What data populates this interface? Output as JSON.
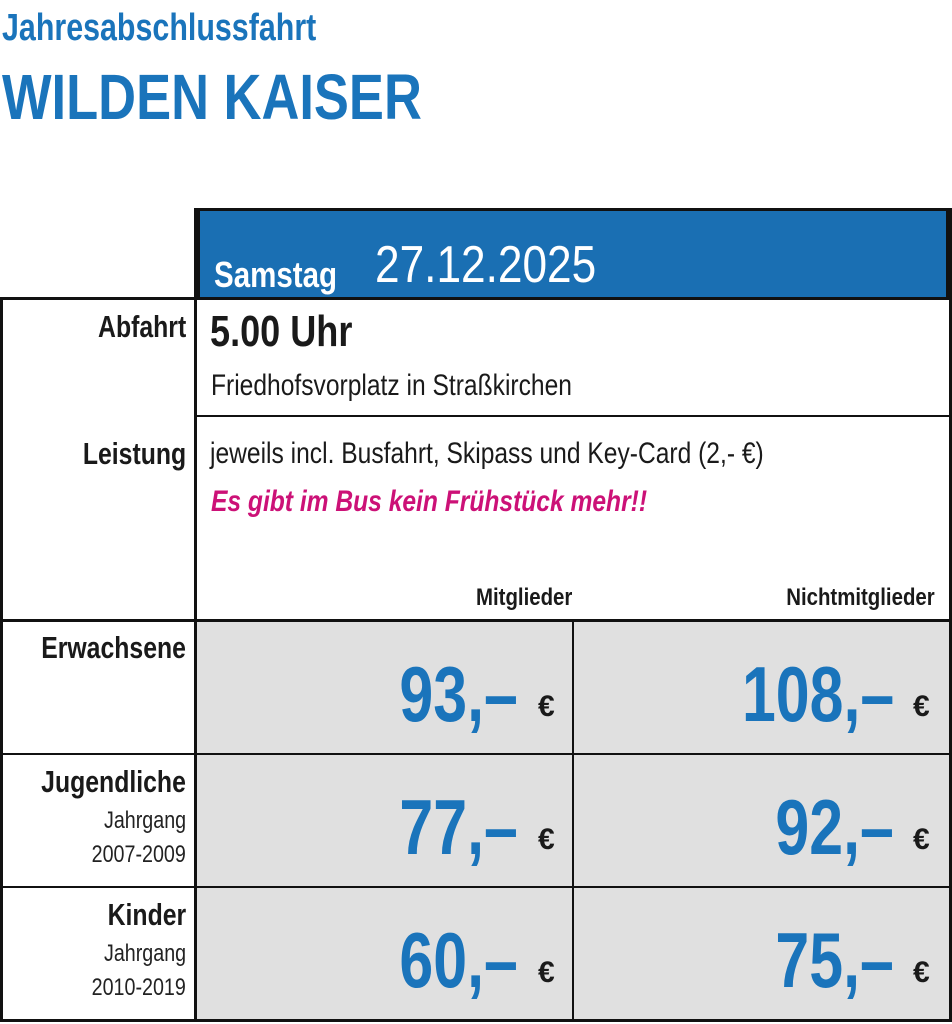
{
  "header": {
    "title_small": "Jahresabschlussfahrt",
    "title_big": "WILDEN KAISER",
    "accent_color": "#1a74bb"
  },
  "date_bar": {
    "weekday": "Samstag",
    "date": "27.12.2025"
  },
  "departure": {
    "label": "Abfahrt",
    "time": "5.00 Uhr",
    "place": "Friedhofsvorplatz in Straßkirchen"
  },
  "service": {
    "label": "Leistung",
    "text": "jeweils incl. Busfahrt, Skipass und Key-Card (2,- €)",
    "note": "Es gibt im Bus kein Frühstück mehr!!",
    "note_color": "#cc1177"
  },
  "columns": [
    "Mitglieder",
    "Nichtmitglieder"
  ],
  "rows": [
    {
      "label": "Erwachsene",
      "sub1": "",
      "sub2": "",
      "member": "93,–",
      "nonmember": "108,–"
    },
    {
      "label": "Jugendliche",
      "sub1": "Jahrgang",
      "sub2": "2007-2009",
      "member": "77,–",
      "nonmember": "92,–"
    },
    {
      "label": "Kinder",
      "sub1": "Jahrgang",
      "sub2": "2010-2019",
      "member": "60,–",
      "nonmember": "75,–"
    }
  ],
  "currency": "€"
}
